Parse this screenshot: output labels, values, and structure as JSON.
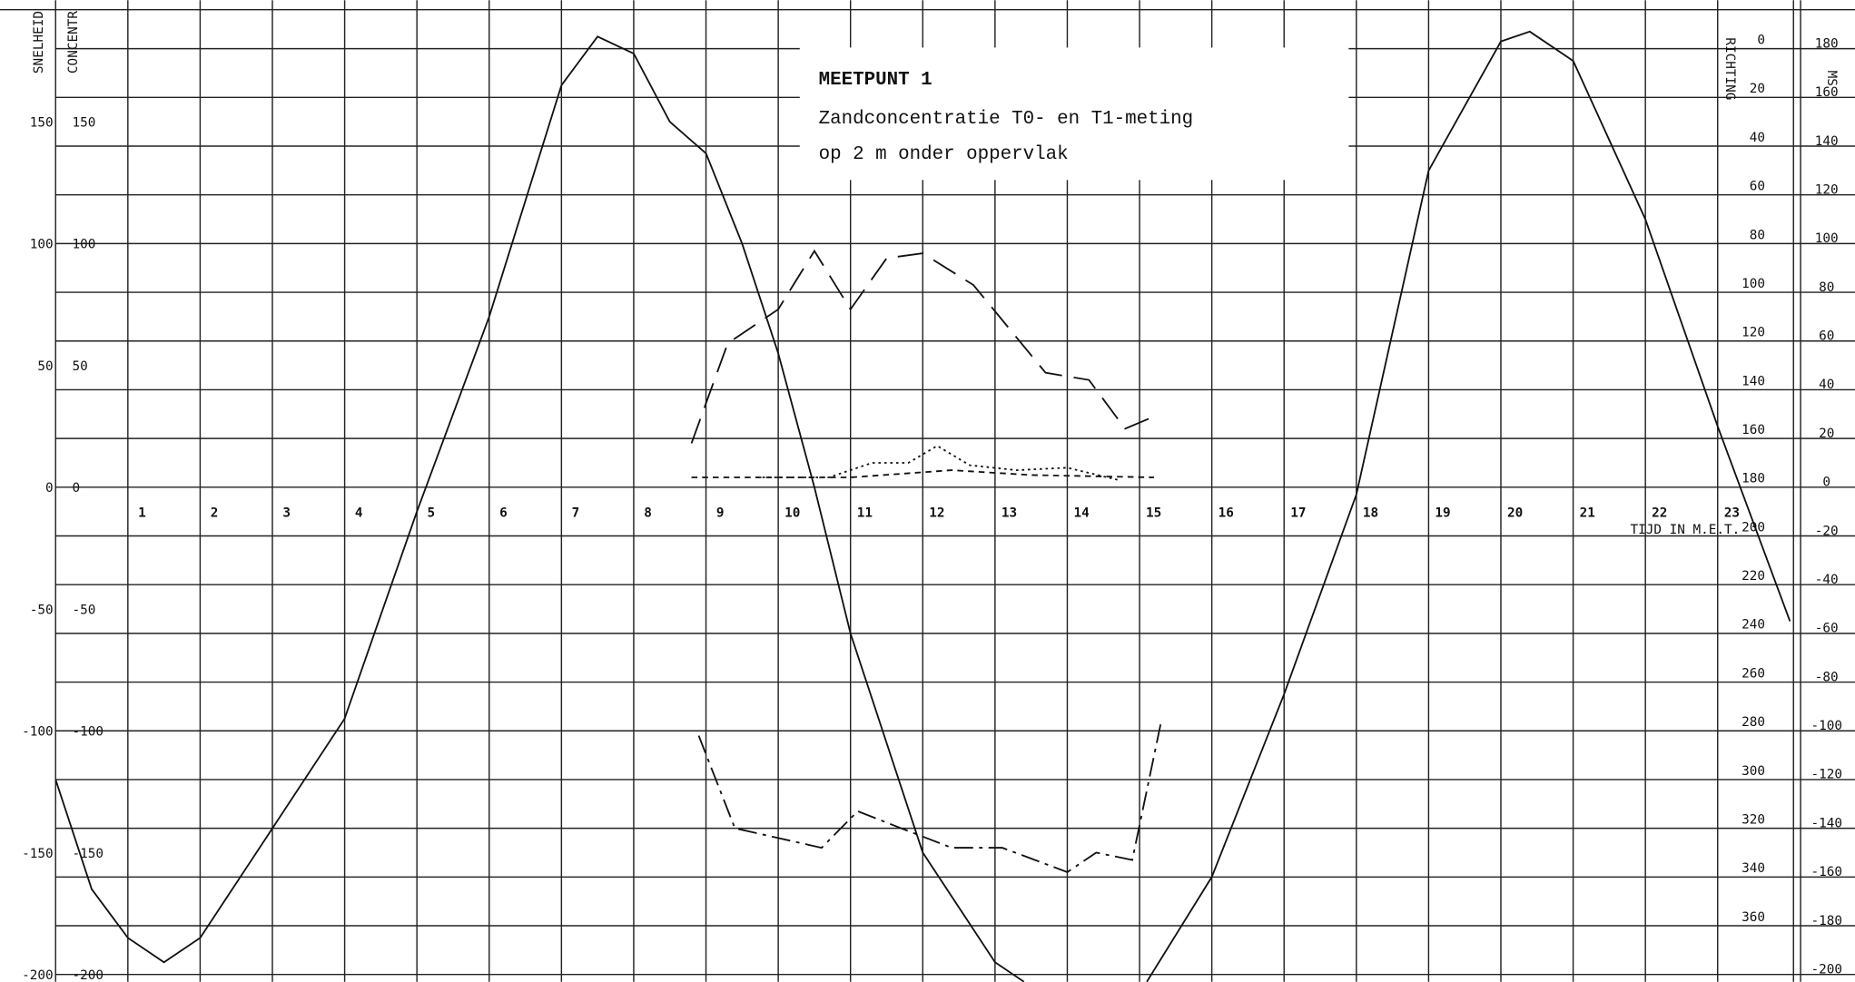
{
  "chart_data": {
    "type": "line",
    "title": "MEETPUNT 1",
    "subtitle": [
      "Zandconcentratie T0- en T1-meting",
      "op 2 m onder oppervlak"
    ],
    "x_label": "TIJD IN M.E.T.",
    "xlim": [
      0,
      24
    ],
    "xticks": [
      1,
      2,
      3,
      4,
      5,
      6,
      7,
      8,
      9,
      10,
      11,
      12,
      13,
      14,
      15,
      16,
      17,
      18,
      19,
      20,
      21,
      22,
      23
    ],
    "ylim": [
      -203,
      196
    ],
    "y_axes": [
      {
        "label": "SNELHEID",
        "ticks": [
          150,
          100,
          50,
          0,
          -50,
          -100,
          -150,
          -200
        ]
      },
      {
        "label": "CONCENTR",
        "ticks": [
          150,
          100,
          50,
          0,
          -50,
          -100,
          -150,
          -200
        ]
      }
    ],
    "y2_axes": [
      {
        "label": "RICHTING",
        "lim": [
          -16,
          383
        ],
        "ticks": [
          0,
          20,
          40,
          60,
          80,
          100,
          120,
          140,
          160,
          180,
          200,
          220,
          240,
          260,
          280,
          300,
          320,
          340,
          360
        ]
      },
      {
        "label": "MS",
        "lim": [
          196,
          -203
        ],
        "ticks": [
          180,
          160,
          140,
          120,
          100,
          80,
          60,
          40,
          20,
          0,
          -20,
          -40,
          -60,
          -80,
          -100,
          -120,
          -140,
          -160,
          -180,
          -200
        ]
      }
    ],
    "grid": true,
    "series": [
      {
        "color": "#111",
        "dash": "none",
        "x": [
          0,
          0.5,
          1,
          1.5,
          2,
          3,
          4,
          5,
          6,
          7,
          7.5,
          8,
          8.5,
          9,
          9.5,
          10,
          10.5,
          11,
          12,
          13,
          13.4,
          null,
          15.1,
          16,
          17,
          18,
          19,
          20,
          20.4,
          21,
          22,
          23,
          24
        ],
        "values": [
          -120,
          -165,
          -185,
          -195,
          -185,
          -140,
          -95,
          -10,
          70,
          165,
          185,
          178,
          150,
          137,
          100,
          55,
          0,
          -60,
          -150,
          -195,
          -203,
          null,
          -203,
          -160,
          -85,
          -3,
          130,
          183,
          187,
          175,
          110,
          25,
          -55
        ]
      },
      {
        "color": "#111",
        "dash": "22 10",
        "x": [
          8.8,
          9.3,
          10,
          10.5,
          11,
          11.5,
          12,
          12.7,
          13.7,
          14.3,
          14.8,
          15.2
        ],
        "values": [
          18,
          59,
          73,
          97,
          73,
          94,
          96,
          83,
          47,
          44,
          24,
          29
        ]
      },
      {
        "color": "#111",
        "dash": "2 3",
        "x": [
          9.7,
          10.7,
          11.3,
          11.8,
          12.2,
          12.65,
          13.3,
          14,
          14.7
        ],
        "values": [
          4,
          4,
          10,
          10,
          17,
          9,
          7,
          8,
          3
        ]
      },
      {
        "color": "#111",
        "dash": "5 4",
        "x": [
          8.8,
          11,
          12.4,
          13.5,
          15.2
        ],
        "values": [
          4,
          4,
          7,
          5,
          4
        ]
      },
      {
        "color": "#111",
        "dash": "16 5 3 5",
        "x": [
          8.9,
          9.4,
          10.6,
          11.1,
          11.7,
          12.4,
          13.1,
          14,
          14.4,
          14.9,
          15.3
        ],
        "values": [
          -102,
          -140,
          -148,
          -133,
          -140,
          -148,
          -148,
          -158,
          -150,
          -153,
          -96
        ]
      }
    ]
  }
}
